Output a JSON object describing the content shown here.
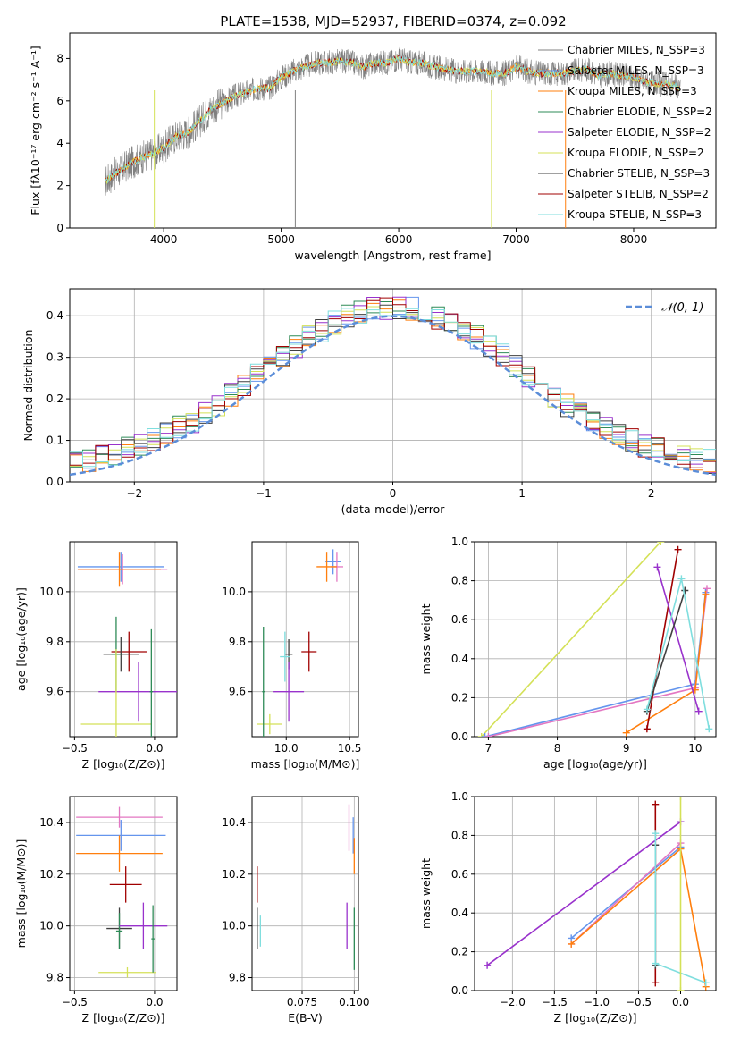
{
  "figure_title": "PLATE=1538, MJD=52937, FIBERID=0374, z=0.092",
  "series_colors": [
    "#808080",
    "#6495ED",
    "#FF7F0E",
    "#2E8B57",
    "#9932CC",
    "#D4E157",
    "#404040",
    "#A00000",
    "#7FDEDE"
  ],
  "chart_data": [
    {
      "id": "spectrum",
      "type": "line",
      "title": "PLATE=1538, MJD=52937, FIBERID=0374, z=0.092",
      "xlabel": "wavelength [Angstrom, rest frame]",
      "ylabel": "Flux [fλ10⁻¹⁷ erg cm⁻² s⁻¹ A⁻¹]",
      "xlim": [
        3200,
        8700
      ],
      "ylim": [
        0,
        9.2
      ],
      "xticks": [
        "4000",
        "5000",
        "6000",
        "7000",
        "8000"
      ],
      "yticks": [
        "0",
        "2",
        "4",
        "6",
        "8"
      ],
      "legend": "top-right",
      "legend_entries": [
        "Chabrier MILES, N_SSP=3",
        "Salpeter MILES, N_SSP=3",
        "Kroupa MILES, N_SSP=3",
        "Chabrier ELODIE, N_SSP=2",
        "Salpeter ELODIE, N_SSP=2",
        "Kroupa ELODIE, N_SSP=2",
        "Chabrier STELIB, N_SSP=3",
        "Salpeter STELIB, N_SSP=2",
        "Kroupa STELIB, N_SSP=3"
      ],
      "x": [
        3500,
        3600,
        3700,
        3800,
        3900,
        4000,
        4100,
        4200,
        4300,
        4400,
        4500,
        4600,
        4700,
        4800,
        4900,
        5000,
        5100,
        5200,
        5300,
        5400,
        5500,
        5600,
        5700,
        5800,
        5900,
        6000,
        6100,
        6200,
        6300,
        6400,
        6500,
        6600,
        6700,
        6800,
        6900,
        7000,
        7100,
        7200,
        7300,
        7400,
        7500,
        7600,
        7700,
        7800,
        7900,
        8000,
        8100,
        8200,
        8300,
        8400
      ],
      "values": [
        2.2,
        2.6,
        3.0,
        3.3,
        3.5,
        3.8,
        4.3,
        4.5,
        5.0,
        5.6,
        5.9,
        6.2,
        6.4,
        6.6,
        6.6,
        7.1,
        7.4,
        7.6,
        7.8,
        7.8,
        7.9,
        7.8,
        7.6,
        7.8,
        7.8,
        8.0,
        7.8,
        7.8,
        7.6,
        7.5,
        7.4,
        7.4,
        7.4,
        7.3,
        7.3,
        7.6,
        7.4,
        7.3,
        7.3,
        7.3,
        7.4,
        7.5,
        7.2,
        7.3,
        7.2,
        7.1,
        6.9,
        6.8,
        6.8,
        6.6
      ],
      "plotted_series_colors": [
        "#808080",
        "#FF7F0E",
        "#A00000",
        "#D4E157",
        "#7FDEDE"
      ]
    },
    {
      "id": "residuals",
      "type": "histogram",
      "xlabel": "(data-model)/error",
      "ylabel": "Normed distribution",
      "xlim": [
        -2.5,
        2.5
      ],
      "ylim": [
        0,
        0.465
      ],
      "xticks": [
        "−2",
        "−1",
        "0",
        "1",
        "2"
      ],
      "yticks": [
        "0.0",
        "0.1",
        "0.2",
        "0.3",
        "0.4"
      ],
      "grid": true,
      "legend": "top-right",
      "legend_entries": [
        "𝒩(0, 1)"
      ],
      "bin_width": 0.1,
      "reference_curve": "standard normal, dashed"
    },
    {
      "id": "z-vs-age",
      "type": "scatter",
      "xlabel": "Z [log₁₀(Z/Z⊙)]",
      "ylabel": "age  [log₁₀(age/yr)]",
      "xlim": [
        -0.53,
        0.14
      ],
      "ylim": [
        9.42,
        10.2
      ],
      "xticks": [
        "−0.5",
        "0.0"
      ],
      "yticks": [
        "9.6",
        "9.8",
        "10.0"
      ],
      "grid": true,
      "points": [
        {
          "color": "#6495ED",
          "x": -0.21,
          "xerr": 0.27,
          "y": 10.1,
          "yerr": 0.06
        },
        {
          "color": "#E377C2",
          "x": -0.2,
          "xerr": 0.28,
          "y": 10.09,
          "yerr": 0.06
        },
        {
          "color": "#FF7F0E",
          "x": -0.22,
          "xerr": 0.26,
          "y": 10.09,
          "yerr": 0.07
        },
        {
          "color": "#A00000",
          "x": -0.16,
          "xerr": 0.11,
          "y": 9.76,
          "yerr": 0.08
        },
        {
          "color": "#404040",
          "x": -0.21,
          "xerr": 0.11,
          "y": 9.75,
          "yerr": 0.07
        },
        {
          "color": "#2E8B57",
          "x": -0.24,
          "xerr": 0.03,
          "y": 9.75,
          "yerr": 0.15
        },
        {
          "color": "#9932CC",
          "x": -0.1,
          "xerr": 0.25,
          "y": 9.6,
          "yerr": 0.12
        },
        {
          "color": "#D4E157",
          "x": -0.24,
          "xerr": 0.22,
          "y": 9.47,
          "yerr": 0.3
        },
        {
          "color": "#2E8B57",
          "x": -0.02,
          "xerr": 0.01,
          "y": 9.6,
          "yerr": 0.25
        }
      ]
    },
    {
      "id": "mass-vs-age",
      "type": "scatter",
      "xlabel": "mass [log₁₀(M/M⊙)]",
      "ylabel": "",
      "xlim": [
        9.73,
        10.57
      ],
      "ylim": [
        9.42,
        10.2
      ],
      "xticks": [
        "9.5",
        "10.0",
        "10.5"
      ],
      "yticks": [
        "9.6",
        "9.8",
        "10.0"
      ],
      "grid": true,
      "points": [
        {
          "color": "#6495ED",
          "x": 10.37,
          "xerr": 0.06,
          "y": 10.12,
          "yerr": 0.05
        },
        {
          "color": "#E377C2",
          "x": 10.4,
          "xerr": 0.05,
          "y": 10.1,
          "yerr": 0.06
        },
        {
          "color": "#FF7F0E",
          "x": 10.32,
          "xerr": 0.08,
          "y": 10.1,
          "yerr": 0.06
        },
        {
          "color": "#A00000",
          "x": 10.18,
          "xerr": 0.06,
          "y": 9.76,
          "yerr": 0.08
        },
        {
          "color": "#404040",
          "x": 10.02,
          "xerr": 0.03,
          "y": 9.75,
          "yerr": 0.06
        },
        {
          "color": "#7FDEDE",
          "x": 9.99,
          "xerr": 0.04,
          "y": 9.74,
          "yerr": 0.1
        },
        {
          "color": "#9932CC",
          "x": 10.02,
          "xerr": 0.12,
          "y": 9.6,
          "yerr": 0.12
        },
        {
          "color": "#D4E157",
          "x": 9.87,
          "xerr": 0.1,
          "y": 9.47,
          "yerr": 0.04
        },
        {
          "color": "#2E8B57",
          "x": 9.82,
          "xerr": 0.01,
          "y": 9.6,
          "yerr": 0.26
        }
      ]
    },
    {
      "id": "age-vs-weight",
      "type": "line",
      "xlabel": "age  [log₁₀(age/yr)]",
      "ylabel": "mass weight",
      "xlim": [
        6.8,
        10.3
      ],
      "ylim": [
        0,
        1
      ],
      "xticks": [
        "7",
        "8",
        "9",
        "10"
      ],
      "yticks": [
        "0.0",
        "0.2",
        "0.4",
        "0.6",
        "0.8",
        "1.0"
      ],
      "grid": true,
      "series": [
        {
          "color": "#D4E157",
          "x": [
            6.9,
            9.5
          ],
          "y": [
            0.0,
            1.0
          ]
        },
        {
          "color": "#6495ED",
          "x": [
            6.95,
            10.0,
            10.15
          ],
          "y": [
            0.0,
            0.27,
            0.74
          ]
        },
        {
          "color": "#E377C2",
          "x": [
            7.0,
            10.0,
            10.17
          ],
          "y": [
            0.0,
            0.25,
            0.76
          ]
        },
        {
          "color": "#FF7F0E",
          "x": [
            9.0,
            10.0,
            10.15
          ],
          "y": [
            0.02,
            0.24,
            0.73
          ]
        },
        {
          "color": "#A00000",
          "x": [
            9.3,
            9.75
          ],
          "y": [
            0.04,
            0.96
          ]
        },
        {
          "color": "#9932CC",
          "x": [
            9.45,
            10.05
          ],
          "y": [
            0.87,
            0.13
          ]
        },
        {
          "color": "#404040",
          "x": [
            9.3,
            9.85
          ],
          "y": [
            0.13,
            0.75
          ]
        },
        {
          "color": "#7FDEDE",
          "x": [
            9.3,
            9.8,
            10.2
          ],
          "y": [
            0.14,
            0.81,
            0.04
          ]
        }
      ]
    },
    {
      "id": "z-vs-mass",
      "type": "scatter",
      "xlabel": "Z [log₁₀(Z/Z⊙)]",
      "ylabel": "mass [log₁₀(M/M⊙)]",
      "xlim": [
        -0.53,
        0.14
      ],
      "ylim": [
        9.75,
        10.5
      ],
      "xticks": [
        "−0.5",
        "0.0"
      ],
      "yticks": [
        "9.8",
        "10.0",
        "10.2",
        "10.4"
      ],
      "grid": true,
      "points": [
        {
          "color": "#E377C2",
          "x": -0.22,
          "xerr": 0.27,
          "y": 10.42,
          "yerr": 0.04
        },
        {
          "color": "#6495ED",
          "x": -0.21,
          "xerr": 0.28,
          "y": 10.35,
          "yerr": 0.06
        },
        {
          "color": "#FF7F0E",
          "x": -0.22,
          "xerr": 0.27,
          "y": 10.28,
          "yerr": 0.07
        },
        {
          "color": "#A00000",
          "x": -0.18,
          "xerr": 0.1,
          "y": 10.16,
          "yerr": 0.07
        },
        {
          "color": "#404040",
          "x": -0.22,
          "xerr": 0.08,
          "y": 9.99,
          "yerr": 0.08
        },
        {
          "color": "#2E8B57",
          "x": -0.22,
          "xerr": 0.02,
          "y": 9.98,
          "yerr": 0.07
        },
        {
          "color": "#9932CC",
          "x": -0.07,
          "xerr": 0.15,
          "y": 10.0,
          "yerr": 0.09
        },
        {
          "color": "#D4E157",
          "x": -0.17,
          "xerr": 0.18,
          "y": 9.82,
          "yerr": 0.02
        },
        {
          "color": "#2E8B57",
          "x": -0.01,
          "xerr": 0.01,
          "y": 9.95,
          "yerr": 0.13
        }
      ]
    },
    {
      "id": "ebv-vs-mass",
      "type": "scatter",
      "xlabel": "E(B-V)",
      "ylabel": "",
      "xlim": [
        0.051,
        0.102
      ],
      "ylim": [
        9.75,
        10.5
      ],
      "xticks": [
        "0.075",
        "0.100"
      ],
      "yticks": [
        "9.8",
        "10.0",
        "10.2",
        "10.4"
      ],
      "grid": true,
      "points": [
        {
          "color": "#A00000",
          "x": 0.0535,
          "xerr": 0,
          "y": 10.16,
          "yerr": 0.07
        },
        {
          "color": "#404040",
          "x": 0.0535,
          "xerr": 0,
          "y": 9.99,
          "yerr": 0.08
        },
        {
          "color": "#7FDEDE",
          "x": 0.055,
          "xerr": 0,
          "y": 9.98,
          "yerr": 0.06
        },
        {
          "color": "#9932CC",
          "x": 0.0965,
          "xerr": 0,
          "y": 10.0,
          "yerr": 0.09
        },
        {
          "color": "#E377C2",
          "x": 0.0975,
          "xerr": 0,
          "y": 10.38,
          "yerr": 0.09
        },
        {
          "color": "#6495ED",
          "x": 0.0995,
          "xerr": 0,
          "y": 10.35,
          "yerr": 0.07
        },
        {
          "color": "#FF7F0E",
          "x": 0.1,
          "xerr": 0,
          "y": 10.27,
          "yerr": 0.07
        },
        {
          "color": "#2E8B57",
          "x": 0.1,
          "xerr": 0,
          "y": 9.95,
          "yerr": 0.12
        }
      ]
    },
    {
      "id": "z-vs-weight",
      "type": "line",
      "xlabel": "Z [log₁₀(Z/Z⊙)]",
      "ylabel": "mass weight",
      "xlim": [
        -2.45,
        0.42
      ],
      "ylim": [
        0,
        1
      ],
      "xticks": [
        "−2.0",
        "−1.5",
        "−1.0",
        "−0.5",
        "0.0"
      ],
      "yticks": [
        "0.0",
        "0.2",
        "0.4",
        "0.6",
        "0.8",
        "1.0"
      ],
      "grid": true,
      "series": [
        {
          "color": "#9932CC",
          "x": [
            -2.3,
            0.0
          ],
          "y": [
            0.13,
            0.87
          ]
        },
        {
          "color": "#6495ED",
          "x": [
            -1.3,
            0.0
          ],
          "y": [
            0.27,
            0.74
          ]
        },
        {
          "color": "#E377C2",
          "x": [
            -1.3,
            0.0
          ],
          "y": [
            0.24,
            0.76
          ]
        },
        {
          "color": "#FF7F0E",
          "x": [
            -1.3,
            0.0,
            0.3
          ],
          "y": [
            0.24,
            0.73,
            0.02
          ]
        },
        {
          "color": "#A00000",
          "x": [
            -0.3,
            -0.3
          ],
          "y": [
            0.04,
            0.96
          ]
        },
        {
          "color": "#404040",
          "x": [
            -0.3,
            -0.3
          ],
          "y": [
            0.13,
            0.75
          ]
        },
        {
          "color": "#7FDEDE",
          "x": [
            -0.3,
            -0.3,
            0.3
          ],
          "y": [
            0.81,
            0.14,
            0.04
          ]
        },
        {
          "color": "#D4E157",
          "x": [
            0.0,
            0.0
          ],
          "y": [
            0.0,
            1.0
          ]
        }
      ]
    }
  ]
}
